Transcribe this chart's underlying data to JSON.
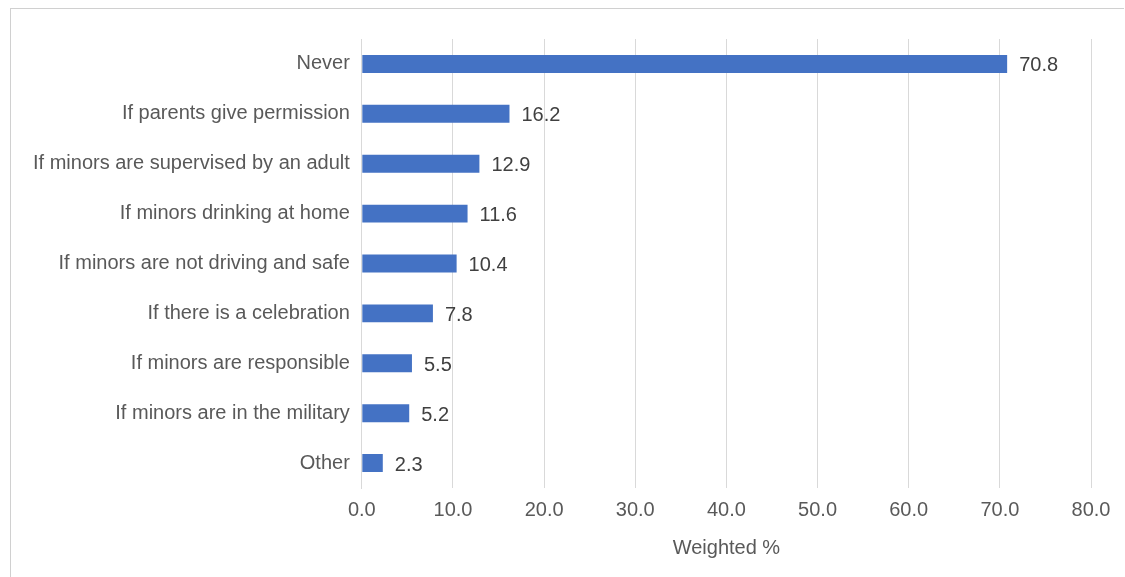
{
  "chart_data": {
    "type": "bar",
    "orientation": "horizontal",
    "xlabel": "Weighted %",
    "categories": [
      "Never",
      "If parents give permission",
      "If minors are supervised by an adult",
      "If minors drinking at home",
      "If minors are not driving and safe",
      "If there is a celebration",
      "If minors are responsible",
      "If minors are in the military",
      "Other"
    ],
    "values": [
      70.8,
      16.2,
      12.9,
      11.6,
      10.4,
      7.8,
      5.5,
      5.2,
      2.3
    ],
    "color": "#4472c4",
    "xlim": [
      0,
      80
    ],
    "xticks": [
      {
        "value": 0,
        "label": "0.0"
      },
      {
        "value": 10,
        "label": "10.0"
      },
      {
        "value": 20,
        "label": "20.0"
      },
      {
        "value": 30,
        "label": "30.0"
      },
      {
        "value": 40,
        "label": "40.0"
      },
      {
        "value": 50,
        "label": "50.0"
      },
      {
        "value": 60,
        "label": "60.0"
      },
      {
        "value": 70,
        "label": "70.0"
      },
      {
        "value": 80,
        "label": "80.0"
      }
    ],
    "grid": "x",
    "data_labels": true,
    "legend": false
  }
}
